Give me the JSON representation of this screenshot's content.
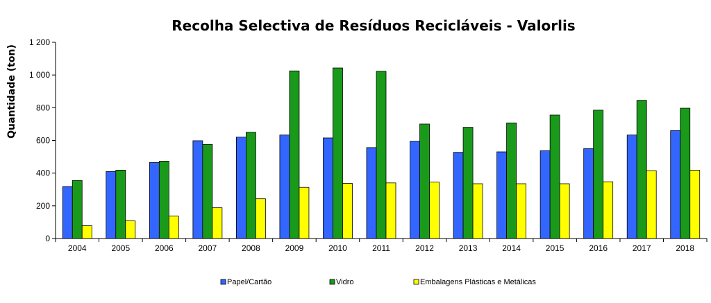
{
  "chart_data": {
    "type": "bar",
    "title": "Recolha Selectiva de Resíduos Recicláveis - Valorlis",
    "xlabel": "",
    "ylabel": "Quantidade (ton)",
    "ylim": [
      0,
      1200
    ],
    "yticks": [
      0,
      200,
      400,
      600,
      800,
      1000,
      1200
    ],
    "ytick_labels": [
      "0",
      "200",
      "400",
      "600",
      "800",
      "1 000",
      "1 200"
    ],
    "grid": false,
    "legend_position": "bottom",
    "categories": [
      "2004",
      "2005",
      "2006",
      "2007",
      "2008",
      "2009",
      "2010",
      "2011",
      "2012",
      "2013",
      "2014",
      "2015",
      "2016",
      "2017",
      "2018"
    ],
    "series": [
      {
        "name": "Papel/Cartão",
        "color": "#3366ff",
        "values": [
          318,
          410,
          465,
          598,
          620,
          633,
          615,
          556,
          595,
          527,
          530,
          537,
          550,
          633,
          660
        ]
      },
      {
        "name": "Vidro",
        "color": "#1a9a1a",
        "values": [
          355,
          418,
          473,
          575,
          650,
          1025,
          1043,
          1023,
          700,
          680,
          707,
          755,
          785,
          845,
          797
        ]
      },
      {
        "name": "Embalagens Plásticas e Metálicas",
        "color": "#ffff00",
        "values": [
          78,
          108,
          137,
          188,
          243,
          313,
          337,
          340,
          345,
          335,
          335,
          335,
          347,
          415,
          418
        ]
      }
    ]
  }
}
